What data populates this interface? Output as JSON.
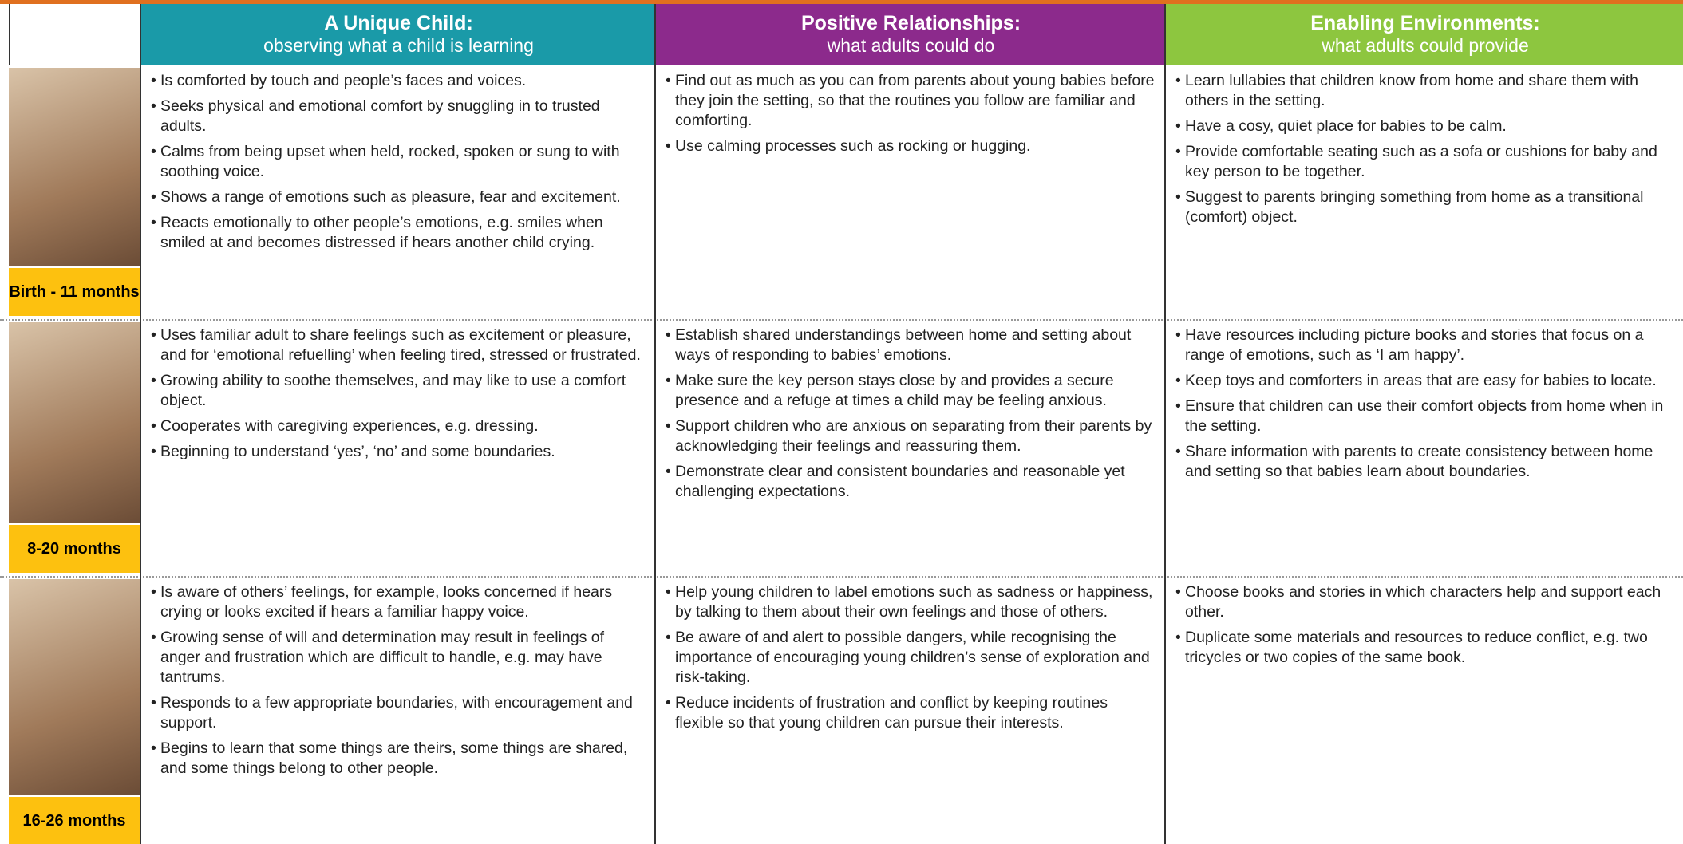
{
  "header": {
    "columns": [
      {
        "title": "A Unique Child:",
        "subtitle": "observing what a child is learning"
      },
      {
        "title": "Positive Relationships:",
        "subtitle": "what adults could do"
      },
      {
        "title": "Enabling Environments:",
        "subtitle": "what adults could provide"
      }
    ]
  },
  "rows": [
    {
      "age": "Birth - 11 months",
      "cells": [
        [
          "Is comforted by touch and people’s faces and voices.",
          "Seeks physical and emotional comfort by snuggling in to trusted adults.",
          "Calms from being upset when held, rocked, spoken or sung to with soothing voice.",
          "Shows a range of emotions such as pleasure, fear and excitement.",
          "Reacts emotionally to other people’s emotions, e.g. smiles when smiled at and becomes distressed if hears another child crying."
        ],
        [
          "Find out as much as you can from parents about young babies before they join the setting, so that the routines you follow are familiar and comforting.",
          "Use calming processes such as rocking or hugging."
        ],
        [
          "Learn lullabies that children know from home and share them with others in the setting.",
          "Have a cosy, quiet place for babies to be calm.",
          "Provide comfortable seating such as a sofa or cushions for baby and key person to be together.",
          "Suggest to parents bringing something from home as a transitional (comfort) object."
        ]
      ]
    },
    {
      "age": "8-20 months",
      "cells": [
        [
          "Uses familiar adult to share feelings such as excitement or pleasure, and for ‘emotional refuelling’ when feeling tired, stressed or frustrated.",
          "Growing ability to soothe themselves, and may like to use a comfort object.",
          "Cooperates with caregiving experiences, e.g. dressing.",
          "Beginning to understand ‘yes’, ‘no’ and some boundaries."
        ],
        [
          "Establish shared understandings between home and setting about ways of responding to babies’ emotions.",
          "Make sure the key person stays close by and provides a secure presence and a refuge at times a child may be feeling anxious.",
          "Support children who are anxious on separating from their parents by acknowledging their feelings and reassuring them.",
          "Demonstrate clear and consistent boundaries and reasonable yet challenging expectations."
        ],
        [
          "Have resources including picture books and stories that focus on a range of emotions, such as ‘I am happy’.",
          "Keep toys and comforters in areas that are easy for babies to locate.",
          "Ensure that children can use their comfort objects from home when in the setting.",
          "Share information with parents to create consistency between home and setting so that babies learn about boundaries."
        ]
      ]
    },
    {
      "age": "16-26 months",
      "cells": [
        [
          "Is aware of others’ feelings, for example, looks concerned if hears crying or looks excited if hears a familiar happy voice.",
          "Growing sense of will and determination may result in feelings of anger and frustration which are difficult to handle, e.g. may have tantrums.",
          "Responds to a few appropriate boundaries, with encouragement and support.",
          "Begins to learn that some things are theirs, some things are shared, and some things belong to other people."
        ],
        [
          "Help young children to label emotions such as sadness or happiness, by talking to them about their own feelings and those of others.",
          "Be aware of and alert to possible dangers, while recognising the importance of encouraging young children’s sense of exploration and risk-taking.",
          "Reduce incidents of frustration and conflict by keeping routines flexible so that young children can pursue their interests."
        ],
        [
          "Choose books and stories in which characters help and support each other.",
          "Duplicate some materials and resources to reduce conflict, e.g. two tricycles or two copies of the same book."
        ]
      ]
    }
  ]
}
